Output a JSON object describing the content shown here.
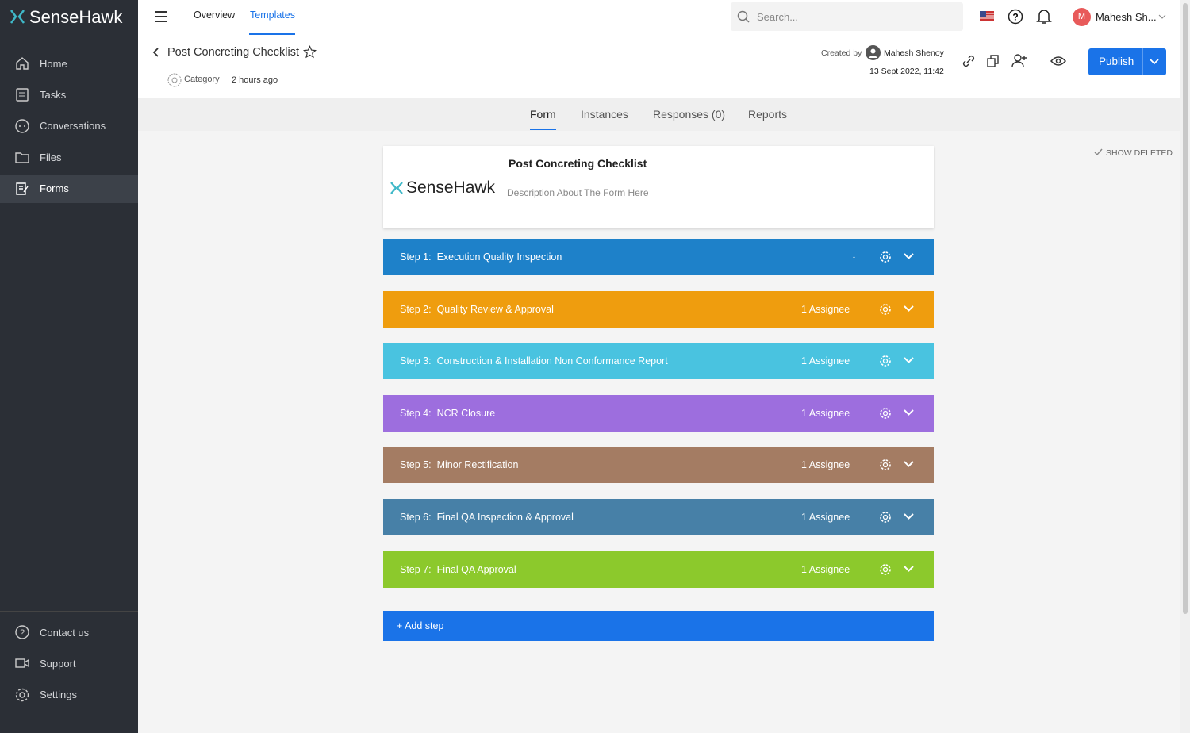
{
  "sidebar": {
    "logo": "SenseHawk",
    "nav": [
      "Home",
      "Tasks",
      "Conversations",
      "Files",
      "Forms"
    ],
    "active": "Forms",
    "bottom": [
      "Contact us",
      "Support",
      "Settings"
    ]
  },
  "topbar": {
    "tabs": [
      "Overview",
      "Templates"
    ],
    "active": "Templates",
    "search_placeholder": "Search...",
    "user": {
      "initial": "M",
      "name": "Mahesh Sh..."
    }
  },
  "header": {
    "title": "Post Concreting Checklist",
    "category": "Category",
    "updated": "2 hours ago",
    "created_by_label": "Created by",
    "created_by": "Mahesh Shenoy",
    "created_at": "13 Sept 2022, 11:42",
    "publish": "Publish"
  },
  "tabs": {
    "items": [
      "Form",
      "Instances",
      "Responses (0)",
      "Reports"
    ],
    "active": "Form"
  },
  "show_deleted": "SHOW DELETED",
  "form": {
    "logo": "SenseHawk",
    "title": "Post Concreting Checklist",
    "description": "Description About The Form Here",
    "steps": [
      {
        "label": "Step 1:",
        "name": "Execution Quality Inspection",
        "assignee": "-",
        "color": "#1e81c9"
      },
      {
        "label": "Step 2:",
        "name": "Quality Review & Approval",
        "assignee": "1 Assignee",
        "color": "#ef9d0e"
      },
      {
        "label": "Step 3:",
        "name": "Construction & Installation Non Conformance Report",
        "assignee": "1 Assignee",
        "color": "#49c3e0"
      },
      {
        "label": "Step 4:",
        "name": "NCR Closure",
        "assignee": "1 Assignee",
        "color": "#9d6ede"
      },
      {
        "label": "Step 5:",
        "name": "Minor Rectification",
        "assignee": "1 Assignee",
        "color": "#a47c63"
      },
      {
        "label": "Step 6:",
        "name": "Final QA Inspection & Approval",
        "assignee": "1 Assignee",
        "color": "#4780a7"
      },
      {
        "label": "Step 7:",
        "name": "Final QA Approval",
        "assignee": "1 Assignee",
        "color": "#8cc92c"
      }
    ],
    "add_step": "+ Add step"
  }
}
